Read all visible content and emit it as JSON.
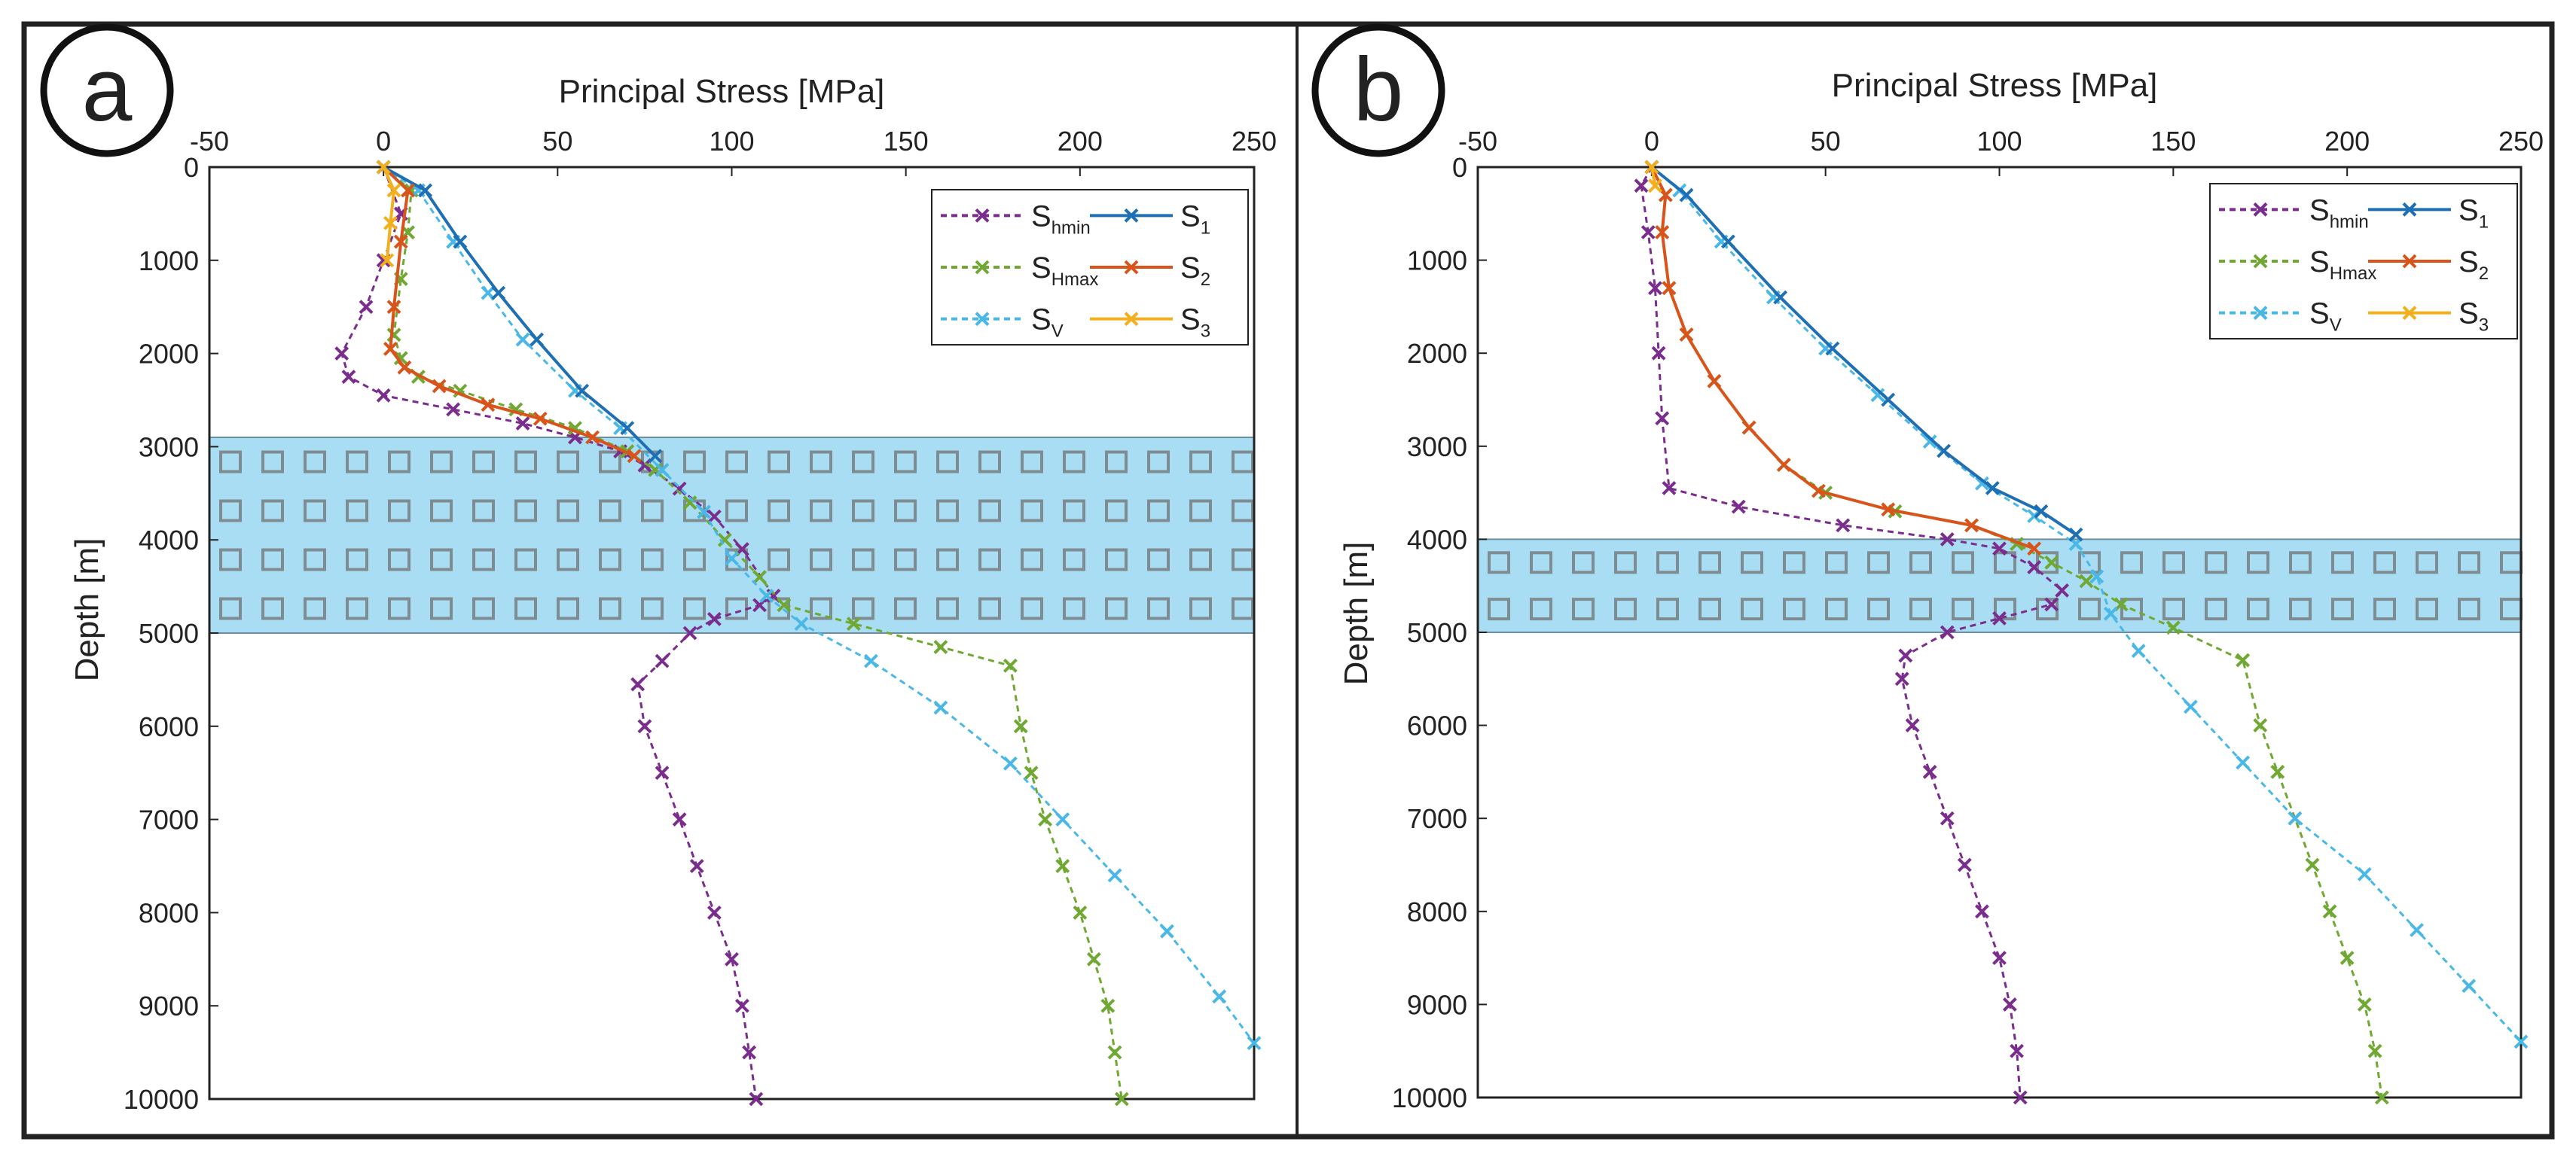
{
  "chart_data": [
    {
      "type": "line",
      "panel_label": "a",
      "xlabel": "Principal Stress [MPa]",
      "ylabel": "Depth [m]",
      "xlim": [
        -50,
        250
      ],
      "ylim": [
        0,
        10000
      ],
      "x_ticks": [
        "-50",
        "0",
        "50",
        "100",
        "150",
        "200",
        "250"
      ],
      "y_ticks": [
        "0",
        "1000",
        "2000",
        "3000",
        "4000",
        "5000",
        "6000",
        "7000",
        "8000",
        "9000",
        "10000"
      ],
      "legend_position": "top-right",
      "shaded_band": {
        "depth_range": [
          2900,
          5000
        ],
        "color": "#a9ddf3"
      },
      "series": [
        {
          "name": "S",
          "subscript": "hmin",
          "style": "dashed",
          "color": "#7b2d8e",
          "points": [
            [
              0,
              0
            ],
            [
              5,
              500
            ],
            [
              0,
              1000
            ],
            [
              -5,
              1500
            ],
            [
              -12,
              2000
            ],
            [
              -10,
              2250
            ],
            [
              0,
              2450
            ],
            [
              20,
              2600
            ],
            [
              40,
              2750
            ],
            [
              55,
              2900
            ],
            [
              68,
              3050
            ],
            [
              75,
              3200
            ],
            [
              85,
              3450
            ],
            [
              95,
              3750
            ],
            [
              103,
              4100
            ],
            [
              112,
              4600
            ],
            [
              108,
              4700
            ],
            [
              95,
              4850
            ],
            [
              88,
              5000
            ],
            [
              80,
              5300
            ],
            [
              73,
              5550
            ],
            [
              75,
              6000
            ],
            [
              80,
              6500
            ],
            [
              85,
              7000
            ],
            [
              90,
              7500
            ],
            [
              95,
              8000
            ],
            [
              100,
              8500
            ],
            [
              103,
              9000
            ],
            [
              105,
              9500
            ],
            [
              107,
              10000
            ]
          ]
        },
        {
          "name": "S",
          "subscript": "Hmax",
          "style": "dashed",
          "color": "#6fa832",
          "points": [
            [
              0,
              0
            ],
            [
              8,
              250
            ],
            [
              7,
              700
            ],
            [
              5,
              1200
            ],
            [
              3,
              1800
            ],
            [
              5,
              2050
            ],
            [
              10,
              2250
            ],
            [
              22,
              2400
            ],
            [
              38,
              2600
            ],
            [
              55,
              2800
            ],
            [
              70,
              3050
            ],
            [
              78,
              3250
            ],
            [
              88,
              3600
            ],
            [
              98,
              4000
            ],
            [
              108,
              4400
            ],
            [
              115,
              4700
            ],
            [
              135,
              4900
            ],
            [
              160,
              5150
            ],
            [
              180,
              5350
            ],
            [
              183,
              6000
            ],
            [
              186,
              6500
            ],
            [
              190,
              7000
            ],
            [
              195,
              7500
            ],
            [
              200,
              8000
            ],
            [
              204,
              8500
            ],
            [
              208,
              9000
            ],
            [
              210,
              9500
            ],
            [
              212,
              10000
            ]
          ]
        },
        {
          "name": "S",
          "subscript": "V",
          "style": "dashed",
          "color": "#4ab8e6",
          "points": [
            [
              0,
              0
            ],
            [
              10,
              250
            ],
            [
              20,
              800
            ],
            [
              30,
              1350
            ],
            [
              40,
              1850
            ],
            [
              55,
              2400
            ],
            [
              68,
              2800
            ],
            [
              80,
              3250
            ],
            [
              92,
              3700
            ],
            [
              100,
              4200
            ],
            [
              110,
              4600
            ],
            [
              120,
              4900
            ],
            [
              140,
              5300
            ],
            [
              160,
              5800
            ],
            [
              180,
              6400
            ],
            [
              195,
              7000
            ],
            [
              210,
              7600
            ],
            [
              225,
              8200
            ],
            [
              240,
              8900
            ],
            [
              250,
              9400
            ]
          ]
        },
        {
          "name": "S",
          "subscript": "1",
          "style": "solid",
          "color": "#1f6fb5",
          "points": [
            [
              0,
              0
            ],
            [
              12,
              250
            ],
            [
              22,
              800
            ],
            [
              33,
              1350
            ],
            [
              44,
              1850
            ],
            [
              57,
              2400
            ],
            [
              70,
              2800
            ],
            [
              78,
              3100
            ]
          ]
        },
        {
          "name": "S",
          "subscript": "2",
          "style": "solid",
          "color": "#d9541a",
          "points": [
            [
              0,
              0
            ],
            [
              7,
              250
            ],
            [
              5,
              800
            ],
            [
              3,
              1500
            ],
            [
              2,
              1950
            ],
            [
              6,
              2150
            ],
            [
              16,
              2350
            ],
            [
              30,
              2550
            ],
            [
              45,
              2700
            ],
            [
              60,
              2900
            ],
            [
              72,
              3100
            ]
          ]
        },
        {
          "name": "S",
          "subscript": "3",
          "style": "solid",
          "color": "#f2b01e",
          "points": [
            [
              0,
              0
            ],
            [
              3,
              250
            ],
            [
              2,
              600
            ],
            [
              1,
              1000
            ]
          ]
        }
      ]
    },
    {
      "type": "line",
      "panel_label": "b",
      "xlabel": "Principal Stress [MPa]",
      "ylabel": "Depth [m]",
      "xlim": [
        -50,
        250
      ],
      "ylim": [
        0,
        10000
      ],
      "x_ticks": [
        "-50",
        "0",
        "50",
        "100",
        "150",
        "200",
        "250"
      ],
      "y_ticks": [
        "0",
        "1000",
        "2000",
        "3000",
        "4000",
        "5000",
        "6000",
        "7000",
        "8000",
        "9000",
        "10000"
      ],
      "legend_position": "top-right",
      "shaded_band": {
        "depth_range": [
          4000,
          5000
        ],
        "color": "#a9ddf3"
      },
      "series": [
        {
          "name": "S",
          "subscript": "hmin",
          "style": "dashed",
          "color": "#7b2d8e",
          "points": [
            [
              0,
              0
            ],
            [
              -3,
              200
            ],
            [
              -1,
              700
            ],
            [
              1,
              1300
            ],
            [
              2,
              2000
            ],
            [
              3,
              2700
            ],
            [
              5,
              3450
            ],
            [
              25,
              3650
            ],
            [
              55,
              3850
            ],
            [
              85,
              4000
            ],
            [
              100,
              4100
            ],
            [
              110,
              4300
            ],
            [
              118,
              4550
            ],
            [
              115,
              4700
            ],
            [
              100,
              4850
            ],
            [
              85,
              5000
            ],
            [
              73,
              5250
            ],
            [
              72,
              5500
            ],
            [
              75,
              6000
            ],
            [
              80,
              6500
            ],
            [
              85,
              7000
            ],
            [
              90,
              7500
            ],
            [
              95,
              8000
            ],
            [
              100,
              8500
            ],
            [
              103,
              9000
            ],
            [
              105,
              9500
            ],
            [
              106,
              10000
            ]
          ]
        },
        {
          "name": "S",
          "subscript": "Hmax",
          "style": "dashed",
          "color": "#6fa832",
          "points": [
            [
              0,
              0
            ],
            [
              4,
              300
            ],
            [
              3,
              700
            ],
            [
              5,
              1300
            ],
            [
              10,
              1800
            ],
            [
              18,
              2300
            ],
            [
              28,
              2800
            ],
            [
              38,
              3200
            ],
            [
              50,
              3500
            ],
            [
              70,
              3700
            ],
            [
              92,
              3850
            ],
            [
              105,
              4050
            ],
            [
              115,
              4250
            ],
            [
              125,
              4450
            ],
            [
              135,
              4700
            ],
            [
              150,
              4950
            ],
            [
              170,
              5300
            ],
            [
              175,
              6000
            ],
            [
              180,
              6500
            ],
            [
              185,
              7000
            ],
            [
              190,
              7500
            ],
            [
              195,
              8000
            ],
            [
              200,
              8500
            ],
            [
              205,
              9000
            ],
            [
              208,
              9500
            ],
            [
              210,
              10000
            ]
          ]
        },
        {
          "name": "S",
          "subscript": "V",
          "style": "dashed",
          "color": "#4ab8e6",
          "points": [
            [
              0,
              0
            ],
            [
              8,
              250
            ],
            [
              20,
              800
            ],
            [
              35,
              1400
            ],
            [
              50,
              1950
            ],
            [
              65,
              2450
            ],
            [
              80,
              2950
            ],
            [
              95,
              3400
            ],
            [
              110,
              3750
            ],
            [
              122,
              4050
            ],
            [
              128,
              4400
            ],
            [
              132,
              4800
            ],
            [
              140,
              5200
            ],
            [
              155,
              5800
            ],
            [
              170,
              6400
            ],
            [
              185,
              7000
            ],
            [
              205,
              7600
            ],
            [
              220,
              8200
            ],
            [
              235,
              8800
            ],
            [
              250,
              9400
            ]
          ]
        },
        {
          "name": "S",
          "subscript": "1",
          "style": "solid",
          "color": "#1f6fb5",
          "points": [
            [
              0,
              0
            ],
            [
              10,
              300
            ],
            [
              22,
              800
            ],
            [
              37,
              1400
            ],
            [
              52,
              1950
            ],
            [
              68,
              2500
            ],
            [
              84,
              3050
            ],
            [
              98,
              3450
            ],
            [
              112,
              3700
            ],
            [
              122,
              3950
            ]
          ]
        },
        {
          "name": "S",
          "subscript": "2",
          "style": "solid",
          "color": "#d9541a",
          "points": [
            [
              0,
              0
            ],
            [
              4,
              300
            ],
            [
              3,
              700
            ],
            [
              5,
              1300
            ],
            [
              10,
              1800
            ],
            [
              18,
              2300
            ],
            [
              28,
              2800
            ],
            [
              38,
              3200
            ],
            [
              48,
              3480
            ],
            [
              68,
              3680
            ],
            [
              92,
              3850
            ],
            [
              110,
              4100
            ]
          ]
        },
        {
          "name": "S",
          "subscript": "3",
          "style": "solid",
          "color": "#f2b01e",
          "points": [
            [
              0,
              0
            ],
            [
              1,
              200
            ]
          ]
        }
      ]
    }
  ]
}
